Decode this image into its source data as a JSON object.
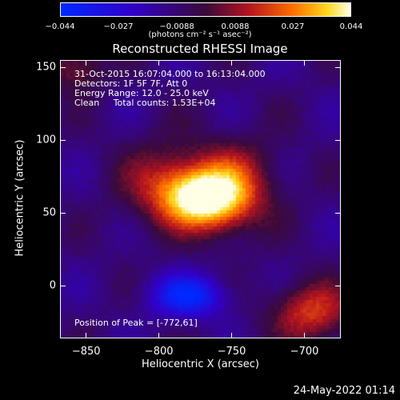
{
  "colorbar": {
    "ticks": [
      "−0.044",
      "−0.027",
      "−0.0088",
      "0.0088",
      "0.027",
      "0.044"
    ],
    "units": "(photons cm⁻² s⁻¹ asec⁻²)"
  },
  "title": "Reconstructed RHESSI Image",
  "info": {
    "time": "31-Oct-2015 16:07:04.000 to 16:13:04.000",
    "detectors": "Detectors: 1F 5F 7F, Att 0",
    "energy": "Energy Range: 12.0 - 25.0 keV",
    "clean": "Clean     Total counts: 1.53E+04"
  },
  "peak_text": "Position of Peak = [-772,61]",
  "footer": "24-May-2022 01:14",
  "chart_data": {
    "type": "heatmap",
    "title": "Reconstructed RHESSI Image",
    "xlabel": "Heliocentric X (arcsec)",
    "ylabel": "Heliocentric Y (arcsec)",
    "xlim": [
      -868,
      -675
    ],
    "ylim": [
      -36,
      155
    ],
    "x_ticks": [
      -850,
      -800,
      -750,
      -700
    ],
    "y_ticks": [
      0,
      50,
      100,
      150
    ],
    "x_tick_labels": [
      "−850",
      "−800",
      "−750",
      "−700"
    ],
    "y_tick_labels": [
      "0",
      "50",
      "100",
      "150"
    ],
    "colorbar_range": [
      -0.044,
      0.044
    ],
    "peak_position": [
      -772,
      61
    ],
    "sources": [
      {
        "x": -772,
        "y": 61,
        "amplitude": 0.044,
        "sx": 19,
        "sy": 14
      },
      {
        "x": -795,
        "y": 70,
        "amplitude": 0.02,
        "sx": 22,
        "sy": 20
      },
      {
        "x": -747,
        "y": 70,
        "amplitude": 0.024,
        "sx": 20,
        "sy": 20
      },
      {
        "x": -757,
        "y": 52,
        "amplitude": 0.01,
        "sx": 15,
        "sy": 14
      },
      {
        "x": -695,
        "y": -18,
        "amplitude": 0.028,
        "sx": 19,
        "sy": 14
      },
      {
        "x": -858,
        "y": 150,
        "amplitude": 0.018,
        "sx": 14,
        "sy": 12
      },
      {
        "x": -780,
        "y": -7,
        "amplitude": -0.032,
        "sx": 18,
        "sy": 10
      }
    ]
  }
}
